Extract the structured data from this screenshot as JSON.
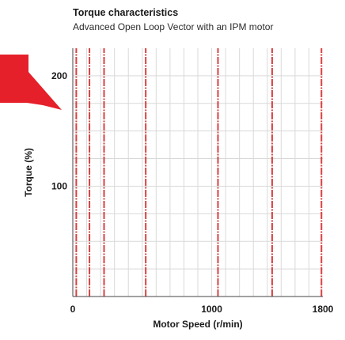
{
  "chart_data": {
    "type": "line",
    "title": "Torque characteristics",
    "subtitle": "Advanced Open Loop Vector with an IPM motor",
    "xlabel": "Motor Speed (r/min)",
    "ylabel": "Torque (%)",
    "xlim": [
      0,
      1800
    ],
    "ylim": [
      0,
      225
    ],
    "x_ticks": [
      0,
      1000,
      1800
    ],
    "y_ticks": [
      100,
      200
    ],
    "grid": true,
    "x_tick_labels": [
      "0",
      "1000",
      "1800"
    ],
    "y_tick_labels": [
      "100",
      "200"
    ],
    "series": [
      {
        "x": [
          25,
          25
        ],
        "y": [
          0,
          225
        ]
      },
      {
        "x": [
          120,
          120
        ],
        "y": [
          0,
          225
        ]
      },
      {
        "x": [
          225,
          225
        ],
        "y": [
          0,
          225
        ]
      },
      {
        "x": [
          525,
          525
        ],
        "y": [
          0,
          225
        ]
      },
      {
        "x": [
          1045,
          1045
        ],
        "y": [
          0,
          225
        ]
      },
      {
        "x": [
          1435,
          1435
        ],
        "y": [
          0,
          225
        ]
      },
      {
        "x": [
          1790,
          1790
        ],
        "y": [
          0,
          225
        ]
      }
    ],
    "line_color": "#d42d2d",
    "callout_color": "#e5202a"
  }
}
